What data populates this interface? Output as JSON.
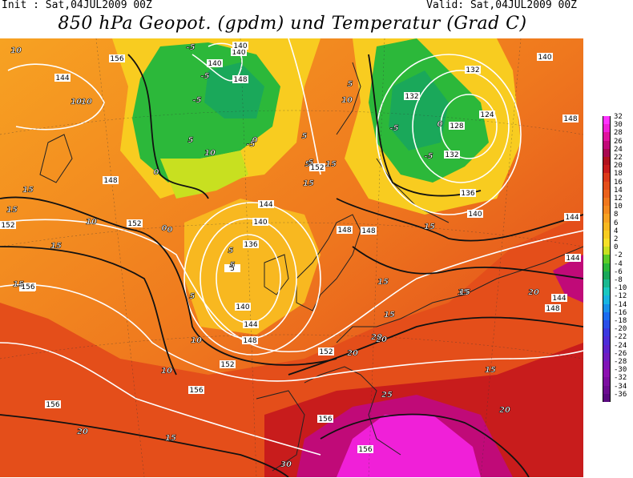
{
  "header": {
    "init": "Init : Sat,04JUL2009 00Z",
    "valid": "Valid: Sat,04JUL2009 00Z",
    "title": "850 hPa Geopot. (gpdm) und Temperatur (Grad C)"
  },
  "legend": {
    "entries": [
      {
        "label": "32",
        "color": "#ff33ff"
      },
      {
        "label": "30",
        "color": "#f020d8"
      },
      {
        "label": "28",
        "color": "#e0129e"
      },
      {
        "label": "26",
        "color": "#c00a78"
      },
      {
        "label": "24",
        "color": "#a80850"
      },
      {
        "label": "22",
        "color": "#b0121e"
      },
      {
        "label": "20",
        "color": "#c81c1c"
      },
      {
        "label": "18",
        "color": "#dc3a1a"
      },
      {
        "label": "16",
        "color": "#e44e1a"
      },
      {
        "label": "14",
        "color": "#ea621c"
      },
      {
        "label": "12",
        "color": "#ef781e"
      },
      {
        "label": "10",
        "color": "#f38a20"
      },
      {
        "label": "8",
        "color": "#f7a222"
      },
      {
        "label": "6",
        "color": "#f8b820"
      },
      {
        "label": "4",
        "color": "#f8cc20"
      },
      {
        "label": "2",
        "color": "#f6e028"
      },
      {
        "label": "0",
        "color": "#c8e020"
      },
      {
        "label": "-2",
        "color": "#5ccc28"
      },
      {
        "label": "-4",
        "color": "#2cb83a"
      },
      {
        "label": "-6",
        "color": "#1aa85a"
      },
      {
        "label": "-8",
        "color": "#1ab890"
      },
      {
        "label": "-10",
        "color": "#1ac8c0"
      },
      {
        "label": "-12",
        "color": "#18b4e0"
      },
      {
        "label": "-14",
        "color": "#1890e8"
      },
      {
        "label": "-16",
        "color": "#1a6cf0"
      },
      {
        "label": "-18",
        "color": "#2a4ee8"
      },
      {
        "label": "-20",
        "color": "#3a38e0"
      },
      {
        "label": "-22",
        "color": "#4c2cd8"
      },
      {
        "label": "-24",
        "color": "#5e22cc"
      },
      {
        "label": "-26",
        "color": "#701cc0"
      },
      {
        "label": "-28",
        "color": "#8014b8"
      },
      {
        "label": "-30",
        "color": "#8c10b0"
      },
      {
        "label": "-32",
        "color": "#7c0ea0"
      },
      {
        "label": "-34",
        "color": "#6c0c90"
      },
      {
        "label": "-36",
        "color": "#5a0a80"
      }
    ]
  },
  "map_labels": {
    "geopotential": [
      "156",
      "140",
      "148",
      "140",
      "148",
      "144",
      "152",
      "144",
      "148",
      "152",
      "152",
      "156",
      "140",
      "136",
      "5",
      "140",
      "144",
      "148",
      "152",
      "156",
      "156",
      "156",
      "156",
      "132",
      "132",
      "128",
      "124",
      "132",
      "136",
      "140",
      "140",
      "148",
      "144",
      "144",
      "148",
      "144",
      "152",
      "148",
      "132",
      "140",
      "156"
    ],
    "temperature": [
      "10",
      "-5",
      "-5",
      "-5",
      "5",
      "0",
      "0",
      "0",
      "10",
      "5",
      "5",
      "0",
      "-5",
      "-5",
      "0",
      "5",
      "10",
      "15",
      "15",
      "10",
      "10",
      "15",
      "5",
      "5",
      "5",
      "10",
      "15",
      "15",
      "15",
      "15",
      "15",
      "20",
      "20",
      "15",
      "20",
      "20",
      "25",
      "20",
      "30",
      "15",
      "20",
      "10",
      "15",
      "-5",
      "5",
      "15",
      "15",
      "10"
    ]
  }
}
